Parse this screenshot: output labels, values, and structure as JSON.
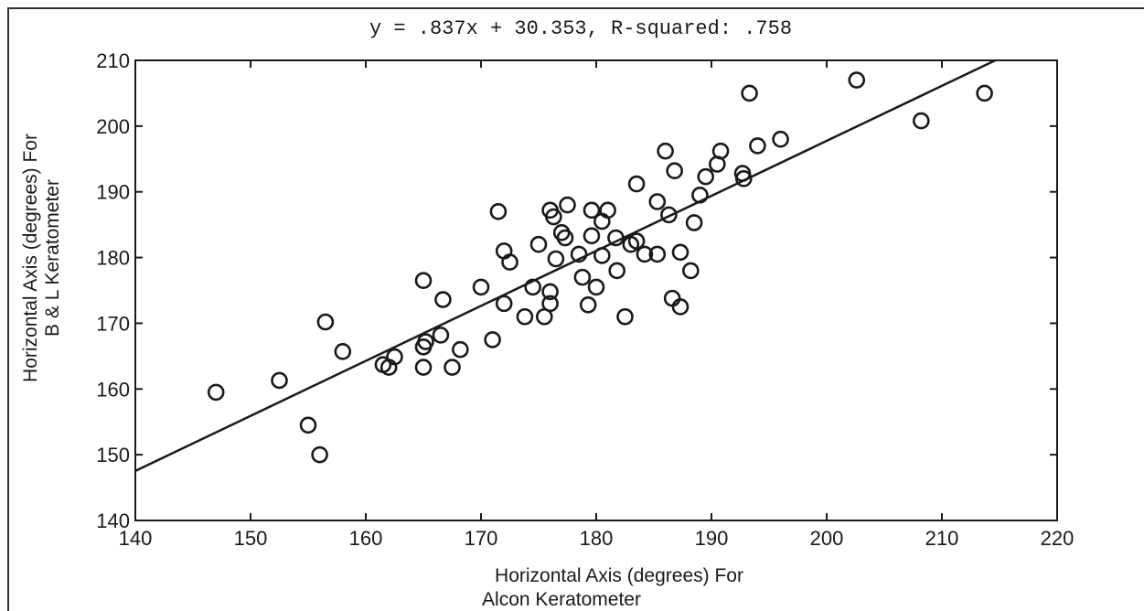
{
  "chart_data": {
    "type": "scatter",
    "title": "y  =  .837x  +  30.353,  R-squared:  .758",
    "xlabel": [
      "Horizontal Axis (degrees) For",
      "Alcon  Keratometer"
    ],
    "ylabel": [
      "Horizontal Axis (degrees) For",
      "B & L Keratometer"
    ],
    "xlim": [
      140,
      220
    ],
    "ylim": [
      140,
      210
    ],
    "x_ticks": [
      "140",
      "150",
      "160",
      "170",
      "180",
      "190",
      "200",
      "210",
      "220"
    ],
    "y_ticks": [
      "140",
      "150",
      "160",
      "170",
      "180",
      "190",
      "200",
      "210"
    ],
    "grid": false,
    "regression_line": {
      "slope": 0.837,
      "intercept": 30.353
    },
    "points": [
      [
        147,
        159.5
      ],
      [
        152.5,
        161.3
      ],
      [
        155,
        154.5
      ],
      [
        156,
        150
      ],
      [
        156.5,
        170.2
      ],
      [
        158,
        165.7
      ],
      [
        161.5,
        163.7
      ],
      [
        162,
        163.3
      ],
      [
        162.5,
        164.9
      ],
      [
        165,
        176.5
      ],
      [
        165,
        163.3
      ],
      [
        165,
        166.4
      ],
      [
        165.2,
        167.2
      ],
      [
        166.5,
        168.2
      ],
      [
        166.7,
        173.6
      ],
      [
        167.5,
        163.3
      ],
      [
        168.2,
        166
      ],
      [
        170,
        175.5
      ],
      [
        171,
        167.5
      ],
      [
        171.5,
        187
      ],
      [
        172,
        181
      ],
      [
        172.5,
        179.3
      ],
      [
        172,
        173
      ],
      [
        173.8,
        171
      ],
      [
        174.5,
        175.5
      ],
      [
        175,
        182
      ],
      [
        175.5,
        171
      ],
      [
        176,
        173
      ],
      [
        176,
        174.8
      ],
      [
        176,
        187.2
      ],
      [
        176.3,
        186.2
      ],
      [
        176.5,
        179.8
      ],
      [
        177,
        183.8
      ],
      [
        177.3,
        183
      ],
      [
        177.5,
        188
      ],
      [
        178.5,
        180.5
      ],
      [
        178.8,
        177
      ],
      [
        179.3,
        172.8
      ],
      [
        179.6,
        187.2
      ],
      [
        179.6,
        183.3
      ],
      [
        180,
        175.5
      ],
      [
        180.5,
        185.5
      ],
      [
        180.5,
        180.3
      ],
      [
        181,
        187.2
      ],
      [
        181.7,
        183
      ],
      [
        181.8,
        178
      ],
      [
        182.5,
        171
      ],
      [
        183,
        182
      ],
      [
        183.5,
        182.5
      ],
      [
        183.5,
        191.2
      ],
      [
        184.2,
        180.5
      ],
      [
        185.3,
        180.5
      ],
      [
        185.3,
        188.5
      ],
      [
        186,
        196.2
      ],
      [
        186.3,
        186.5
      ],
      [
        186.6,
        173.8
      ],
      [
        186.8,
        193.2
      ],
      [
        187.3,
        172.5
      ],
      [
        187.3,
        180.8
      ],
      [
        188.2,
        178
      ],
      [
        188.5,
        185.3
      ],
      [
        189,
        189.5
      ],
      [
        189.5,
        192.3
      ],
      [
        190.5,
        194.2
      ],
      [
        190.8,
        196.2
      ],
      [
        192.7,
        192.8
      ],
      [
        192.8,
        192
      ],
      [
        193.3,
        205
      ],
      [
        194,
        197
      ],
      [
        196,
        198
      ],
      [
        202.6,
        207
      ],
      [
        208.2,
        200.8
      ],
      [
        213.7,
        205
      ]
    ]
  }
}
